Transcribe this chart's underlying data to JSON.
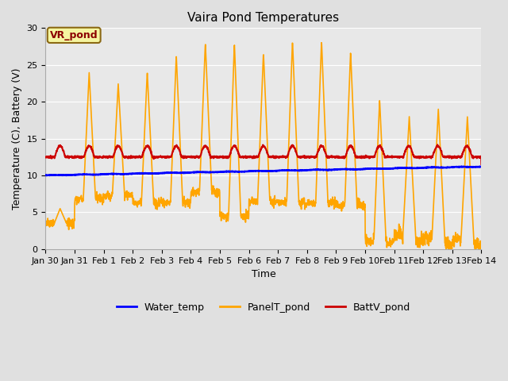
{
  "title": "Vaira Pond Temperatures",
  "xlabel": "Time",
  "ylabel": "Temperature (C), Battery (V)",
  "annotation": "VR_pond",
  "ylim": [
    0,
    30
  ],
  "yticks": [
    0,
    5,
    10,
    15,
    20,
    25,
    30
  ],
  "xtick_labels": [
    "Jan 30",
    "Jan 31",
    "Feb 1",
    "Feb 2",
    "Feb 3",
    "Feb 4",
    "Feb 5",
    "Feb 6",
    "Feb 7",
    "Feb 8",
    "Feb 9",
    "Feb 10",
    "Feb 11",
    "Feb 12",
    "Feb 13",
    "Feb 14"
  ],
  "water_color": "#0000ff",
  "panel_color": "#ffa500",
  "batt_color": "#cc0000",
  "fig_bg_color": "#e0e0e0",
  "plot_bg_color": "#e8e8e8",
  "grid_color": "#ffffff",
  "legend_entries": [
    "Water_temp",
    "PanelT_pond",
    "BattV_pond"
  ],
  "water_lw": 1.8,
  "panel_lw": 1.2,
  "batt_lw": 1.5,
  "title_fontsize": 11,
  "tick_fontsize": 8,
  "label_fontsize": 9,
  "legend_fontsize": 9,
  "annot_fontsize": 9
}
